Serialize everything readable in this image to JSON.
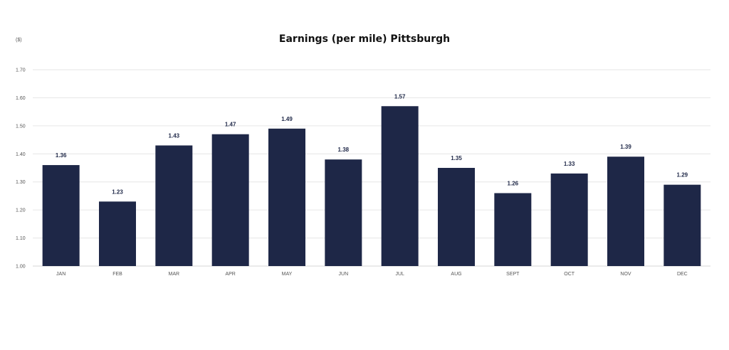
{
  "chart_data": {
    "type": "bar",
    "title": "Earnings (per mile) Pittsburgh",
    "ylabel": "($)",
    "xlabel": "",
    "categories": [
      "JAN",
      "FEB",
      "MAR",
      "APR",
      "MAY",
      "JUN",
      "JUL",
      "AUG",
      "SEPT",
      "OCT",
      "NOV",
      "DEC"
    ],
    "values": [
      1.36,
      1.23,
      1.43,
      1.47,
      1.49,
      1.38,
      1.57,
      1.35,
      1.26,
      1.33,
      1.39,
      1.29
    ],
    "value_labels": [
      "1.36",
      "1.23",
      "1.43",
      "1.47",
      "1.49",
      "1.38",
      "1.57",
      "1.35",
      "1.26",
      "1.33",
      "1.39",
      "1.29"
    ],
    "yticks": [
      1.0,
      1.1,
      1.2,
      1.3,
      1.4,
      1.5,
      1.6,
      1.7
    ],
    "ytick_labels": [
      "1.00",
      "1.10",
      "1.20",
      "1.30",
      "1.40",
      "1.50",
      "1.60",
      "1.70"
    ],
    "ylim": [
      1.0,
      1.7
    ],
    "grid": true,
    "legend": "none",
    "colors": {
      "bar": "#1e2747",
      "label": "#1e2747",
      "grid": "#e6e6e6"
    }
  }
}
